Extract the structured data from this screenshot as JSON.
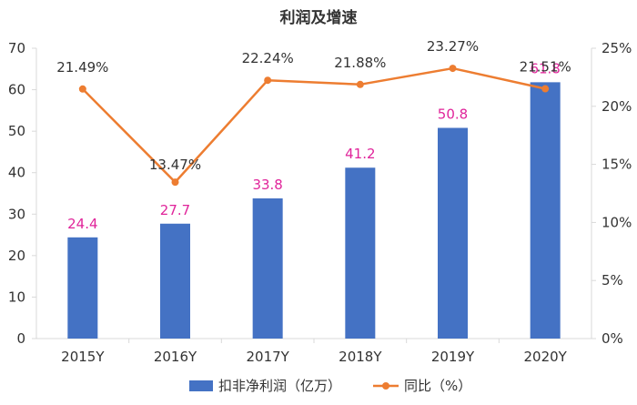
{
  "chart_data": {
    "type": "bar",
    "title": "利润及增速",
    "categories": [
      "2015Y",
      "2016Y",
      "2017Y",
      "2018Y",
      "2019Y",
      "2020Y"
    ],
    "series": [
      {
        "name": "扣非净利润（亿万）",
        "type": "bar",
        "axis": "left",
        "values": [
          24.4,
          27.7,
          33.8,
          41.2,
          50.8,
          61.8
        ],
        "labels": [
          "24.4",
          "27.7",
          "33.8",
          "41.2",
          "50.8",
          "61.8"
        ],
        "color": "#4472c4",
        "label_color": "#e0249a"
      },
      {
        "name": "同比（%）",
        "type": "line",
        "axis": "right",
        "values": [
          21.49,
          13.47,
          22.24,
          21.88,
          23.27,
          21.51
        ],
        "labels": [
          "21.49%",
          "13.47%",
          "22.24%",
          "21.88%",
          "23.27%",
          "21.51%"
        ],
        "color": "#ed7d31"
      }
    ],
    "y_left": {
      "min": 0,
      "max": 70,
      "ticks": [
        "0",
        "10",
        "20",
        "30",
        "40",
        "50",
        "60",
        "70"
      ]
    },
    "y_right": {
      "min": 0,
      "max": 25,
      "ticks": [
        "0%",
        "5%",
        "10%",
        "15%",
        "20%",
        "25%"
      ]
    },
    "grid": false,
    "legend_position": "bottom"
  }
}
